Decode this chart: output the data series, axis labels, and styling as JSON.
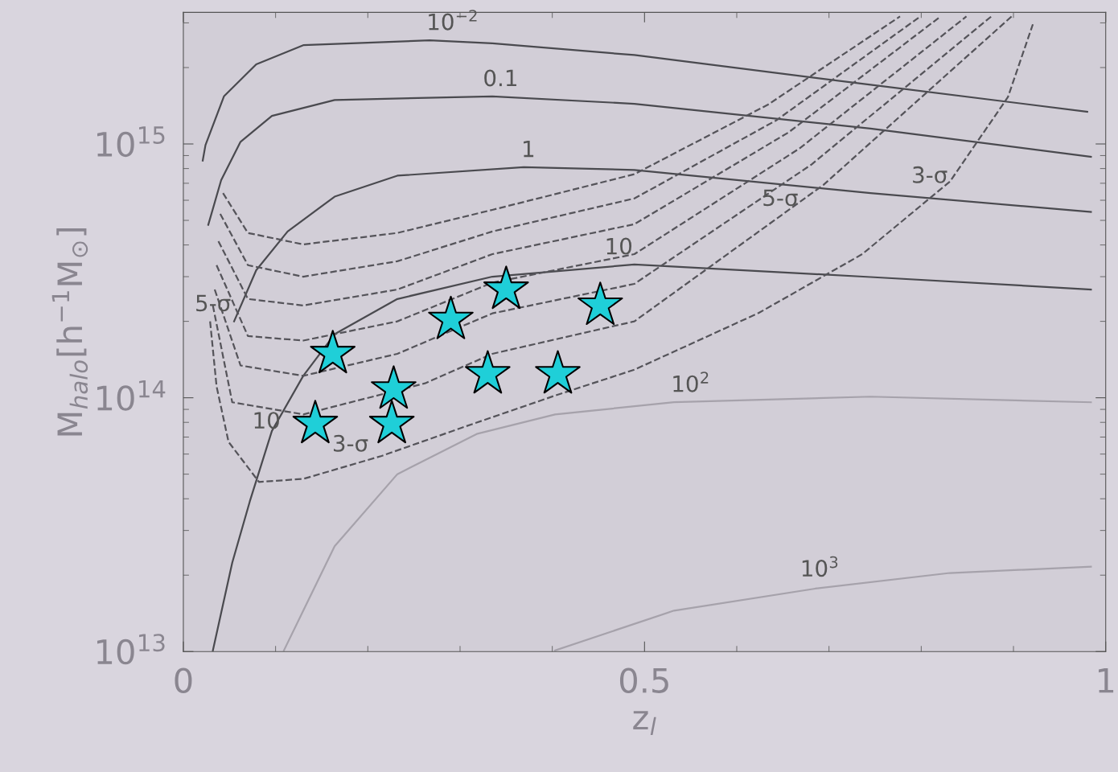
{
  "chart_data": {
    "type": "scatter",
    "xlabel": "z$_{l}$",
    "ylabel": "M$_{halo}$[h$^{−1}$M$_{⊙}$]",
    "xlim": [
      0,
      1
    ],
    "xticks": [
      0,
      0.5,
      1
    ],
    "ylim": [
      10000000000000.0,
      3300000000000000.0
    ],
    "log": "y",
    "yticks": [
      {
        "value": 10000000000000.0,
        "label": "10$^{13}$"
      },
      {
        "value": 100000000000000.0,
        "label": "10$^{14}$"
      },
      {
        "value": 1000000000000000.0,
        "label": "10$^{15}$"
      }
    ],
    "grid": false,
    "series": [
      {
        "type": "line",
        "line_style": "solid",
        "color": "#4a4a4f",
        "x": [
          0.021,
          0.024,
          0.044,
          0.079,
          0.13,
          0.267,
          0.335,
          0.489,
          0.745,
          0.98
        ],
        "values": [
          860000000000000.0,
          990000000000000.0,
          1540000000000000.0,
          2060000000000000.0,
          2450000000000000.0,
          2560000000000000.0,
          2490000000000000.0,
          2240000000000000.0,
          1710000000000000.0,
          1340000000000000.0
        ]
      },
      {
        "type": "line",
        "line_style": "solid",
        "color": "#4a4a4f",
        "x": [
          0.027,
          0.041,
          0.062,
          0.096,
          0.164,
          0.335,
          0.489,
          0.745,
          0.984
        ],
        "values": [
          480000000000000.0,
          720000000000000.0,
          1020000000000000.0,
          1290000000000000.0,
          1490000000000000.0,
          1540000000000000.0,
          1440000000000000.0,
          1150000000000000.0,
          890000000000000.0
        ]
      },
      {
        "type": "line",
        "line_style": "solid",
        "color": "#4a4a4f",
        "x": [
          0.055,
          0.079,
          0.113,
          0.164,
          0.232,
          0.369,
          0.489,
          0.745,
          0.984
        ],
        "values": [
          200000000000000.0,
          318000000000000.0,
          452000000000000.0,
          620000000000000.0,
          750000000000000.0,
          810000000000000.0,
          790000000000000.0,
          640000000000000.0,
          540000000000000.0
        ]
      },
      {
        "type": "line",
        "line_style": "solid",
        "color": "#4a4a4f",
        "x": [
          0.032,
          0.053,
          0.072,
          0.096,
          0.13,
          0.164,
          0.232,
          0.335,
          0.489,
          0.745,
          0.984
        ],
        "values": [
          10100000000000.0,
          22400000000000.0,
          39000000000000.0,
          74000000000000.0,
          122000000000000.0,
          178000000000000.0,
          245000000000000.0,
          300000000000000.0,
          335000000000000.0,
          299000000000000.0,
          267000000000000.0
        ]
      },
      {
        "type": "line",
        "line_style": "solid",
        "color": "#a6a2ab",
        "x": [
          0.109,
          0.164,
          0.232,
          0.318,
          0.403,
          0.532,
          0.745,
          0.984
        ],
        "values": [
          10100000000000.0,
          26000000000000.0,
          50000000000000.0,
          72000000000000.0,
          86000000000000.0,
          96000000000000.0,
          101000000000000.0,
          96000000000000.0
        ]
      },
      {
        "type": "line",
        "line_style": "solid",
        "color": "#a6a2ab",
        "x": [
          0.403,
          0.532,
          0.685,
          0.831,
          0.984
        ],
        "values": [
          10100000000000.0,
          14500000000000.0,
          17700000000000.0,
          20400000000000.0,
          21600000000000.0
        ]
      },
      {
        "type": "line",
        "line_style": "dashed",
        "color": "#55545a",
        "x": [
          0.043,
          0.07,
          0.13,
          0.232,
          0.335,
          0.489,
          0.634,
          0.777
        ],
        "values": [
          640000000000000.0,
          446000000000000.0,
          402000000000000.0,
          446000000000000.0,
          550000000000000.0,
          760000000000000.0,
          1430000000000000.0,
          3180000000000000.0
        ]
      },
      {
        "type": "line",
        "line_style": "dashed",
        "color": "#55545a",
        "x": [
          0.04,
          0.07,
          0.13,
          0.232,
          0.335,
          0.489,
          0.643,
          0.799
        ],
        "values": [
          530000000000000.0,
          333000000000000.0,
          300000000000000.0,
          345000000000000.0,
          452000000000000.0,
          610000000000000.0,
          1240000000000000.0,
          3180000000000000.0
        ]
      },
      {
        "type": "line",
        "line_style": "dashed",
        "color": "#55545a",
        "x": [
          0.038,
          0.07,
          0.13,
          0.232,
          0.335,
          0.489,
          0.656,
          0.821
        ],
        "values": [
          414000000000000.0,
          245000000000000.0,
          231000000000000.0,
          267000000000000.0,
          368000000000000.0,
          483000000000000.0,
          1110000000000000.0,
          3180000000000000.0
        ]
      },
      {
        "type": "line",
        "line_style": "dashed",
        "color": "#55545a",
        "x": [
          0.036,
          0.07,
          0.13,
          0.232,
          0.335,
          0.489,
          0.668,
          0.849
        ],
        "values": [
          333000000000000.0,
          175000000000000.0,
          168000000000000.0,
          200000000000000.0,
          284000000000000.0,
          368000000000000.0,
          960000000000000.0,
          3180000000000000.0
        ]
      },
      {
        "type": "line",
        "line_style": "dashed",
        "color": "#55545a",
        "x": [
          0.034,
          0.062,
          0.13,
          0.232,
          0.335,
          0.489,
          0.681,
          0.876
        ],
        "values": [
          267000000000000.0,
          134000000000000.0,
          122000000000000.0,
          149000000000000.0,
          215000000000000.0,
          281000000000000.0,
          830000000000000.0,
          3180000000000000.0
        ]
      },
      {
        "type": "line",
        "line_style": "dashed",
        "color": "#55545a",
        "x": [
          0.032,
          0.053,
          0.13,
          0.262,
          0.335,
          0.489,
          0.694,
          0.898
        ],
        "values": [
          231000000000000.0,
          96000000000000.0,
          86000000000000.0,
          114000000000000.0,
          149000000000000.0,
          200000000000000.0,
          690000000000000.0,
          3180000000000000.0
        ]
      },
      {
        "type": "line",
        "line_style": "dashed",
        "color": "#55545a",
        "x": [
          0.029,
          0.036,
          0.049,
          0.082,
          0.13,
          0.215,
          0.301,
          0.403,
          0.489,
          0.624,
          0.736,
          0.831,
          0.894,
          0.921
        ],
        "values": [
          200000000000000.0,
          111000000000000.0,
          67000000000000.0,
          46600000000000.0,
          47900000000000.0,
          59000000000000.0,
          76000000000000.0,
          102000000000000.0,
          129000000000000.0,
          216000000000000.0,
          368000000000000.0,
          710000000000000.0,
          1530000000000000.0,
          2960000000000000.0
        ]
      },
      {
        "marker": "star",
        "color": "#1fcfd8",
        "x": [
          0.162,
          0.143,
          0.228,
          0.226,
          0.29,
          0.35,
          0.33,
          0.406,
          0.452
        ],
        "values": [
          149000000000000.0,
          79000000000000.0,
          108000000000000.0,
          79000000000000.0,
          203000000000000.0,
          267000000000000.0,
          124000000000000.0,
          124000000000000.0,
          231000000000000.0
        ]
      }
    ],
    "annotations": [
      {
        "text": "10$^{−2}$",
        "x": 0.292,
        "y": 2560000000000000.0
      },
      {
        "text": "0.1",
        "x": 0.344,
        "y": 1540000000000000.0
      },
      {
        "text": "1",
        "x": 0.374,
        "y": 810000000000000.0
      },
      {
        "text": "10",
        "x": 0.472,
        "y": 335000000000000.0
      },
      {
        "text": "10",
        "x": 0.09,
        "y": 69000000000000.0
      },
      {
        "text": "10$^{2}$",
        "x": 0.55,
        "y": 96000000000000.0
      },
      {
        "text": "10$^{3}$",
        "x": 0.69,
        "y": 18000000000000.0
      },
      {
        "text": "3-σ",
        "x": 0.181,
        "y": 56000000000000.0
      },
      {
        "text": "3-σ",
        "x": 0.809,
        "y": 640000000000000.0
      },
      {
        "text": "5-σ",
        "x": 0.032,
        "y": 200000000000000.0
      },
      {
        "text": "5-σ",
        "x": 0.647,
        "y": 520000000000000.0
      }
    ]
  }
}
